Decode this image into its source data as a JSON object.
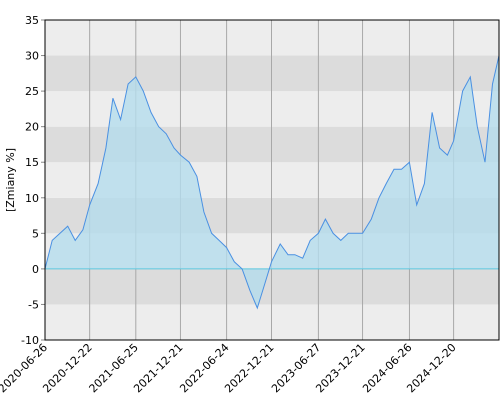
{
  "chart_data": {
    "type": "area",
    "y_label": "[Zmiany %]",
    "x": [
      "2020-06-26",
      "2020-07-25",
      "2020-08-25",
      "2020-09-25",
      "2020-10-25",
      "2020-11-25",
      "2020-12-22",
      "2021-01-25",
      "2021-02-25",
      "2021-03-25",
      "2021-04-25",
      "2021-05-25",
      "2021-06-25",
      "2021-07-25",
      "2021-08-25",
      "2021-09-25",
      "2021-10-25",
      "2021-11-25",
      "2021-12-21",
      "2022-01-25",
      "2022-02-25",
      "2022-03-25",
      "2022-04-25",
      "2022-05-25",
      "2022-06-24",
      "2022-07-25",
      "2022-08-25",
      "2022-09-25",
      "2022-10-25",
      "2022-11-25",
      "2022-12-21",
      "2023-01-25",
      "2023-02-25",
      "2023-03-25",
      "2023-04-25",
      "2023-05-25",
      "2023-06-27",
      "2023-07-25",
      "2023-08-25",
      "2023-09-25",
      "2023-10-25",
      "2023-11-25",
      "2023-12-21",
      "2024-01-25",
      "2024-02-25",
      "2024-03-25",
      "2024-04-25",
      "2024-05-25",
      "2024-06-26",
      "2024-07-25",
      "2024-08-25",
      "2024-09-25",
      "2024-10-25",
      "2024-11-25",
      "2024-12-20",
      "2025-01-25",
      "2025-02-25",
      "2025-03-25",
      "2025-04-25",
      "2025-05-25",
      "2025-06-20"
    ],
    "series": [
      {
        "name": "Zmiany",
        "color": "#4a90e2",
        "fill": "#b4dcec",
        "values": [
          0,
          4,
          5,
          6,
          4,
          5.5,
          9,
          12,
          17,
          24,
          21,
          26,
          27,
          25,
          22,
          20,
          19,
          17,
          16,
          15,
          13,
          8,
          5,
          4,
          3,
          1,
          0,
          -3,
          -5.5,
          -2,
          1,
          3.5,
          2,
          2,
          1.5,
          4,
          5,
          7,
          5,
          4,
          5,
          5,
          5,
          7,
          10,
          12,
          14,
          14,
          15,
          9,
          12,
          22,
          17,
          16,
          18,
          25,
          27,
          20,
          15,
          26,
          30
        ]
      }
    ],
    "xlim": [
      "2020-06-26",
      "2025-06-20"
    ],
    "xticks": [
      "2020-06-26",
      "2020-12-22",
      "2021-06-25",
      "2021-12-21",
      "2022-06-24",
      "2022-12-21",
      "2023-06-27",
      "2023-12-21",
      "2024-06-26",
      "2024-12-20"
    ],
    "ylim": [
      -10,
      35
    ],
    "yticks": [
      -10,
      -5,
      0,
      5,
      10,
      15,
      20,
      25,
      30,
      35
    ],
    "grid": true
  }
}
